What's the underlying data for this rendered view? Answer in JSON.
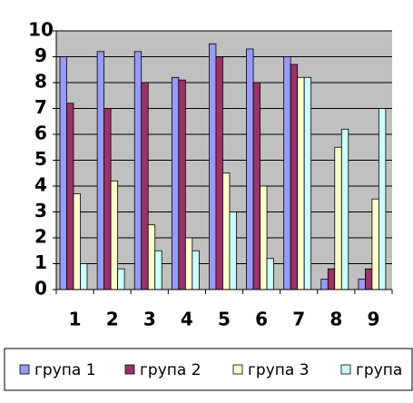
{
  "chart_data": {
    "type": "bar",
    "categories": [
      "1",
      "2",
      "3",
      "4",
      "5",
      "6",
      "7",
      "8",
      "9"
    ],
    "series": [
      {
        "name": "група 1",
        "color": "#9999ff",
        "values": [
          9,
          9.2,
          9.2,
          8.2,
          9.5,
          9.3,
          9,
          0.4,
          0.4
        ]
      },
      {
        "name": "група 2",
        "color": "#993366",
        "values": [
          7.2,
          7,
          8,
          8.1,
          9,
          8,
          8.7,
          0.8,
          0.8
        ]
      },
      {
        "name": "група 3",
        "color": "#ffffcc",
        "values": [
          3.7,
          4.2,
          2.5,
          2,
          4.5,
          4,
          8.2,
          5.5,
          3.5
        ]
      },
      {
        "name": "група",
        "color": "#ccffff",
        "values": [
          1,
          0.8,
          1.5,
          1.5,
          3,
          1.2,
          8.2,
          6.2,
          7
        ]
      }
    ],
    "ylim": [
      0,
      10
    ],
    "yticks": [
      0,
      1,
      2,
      3,
      4,
      5,
      6,
      7,
      8,
      9,
      10
    ],
    "grid": true,
    "legend": "bottom"
  }
}
